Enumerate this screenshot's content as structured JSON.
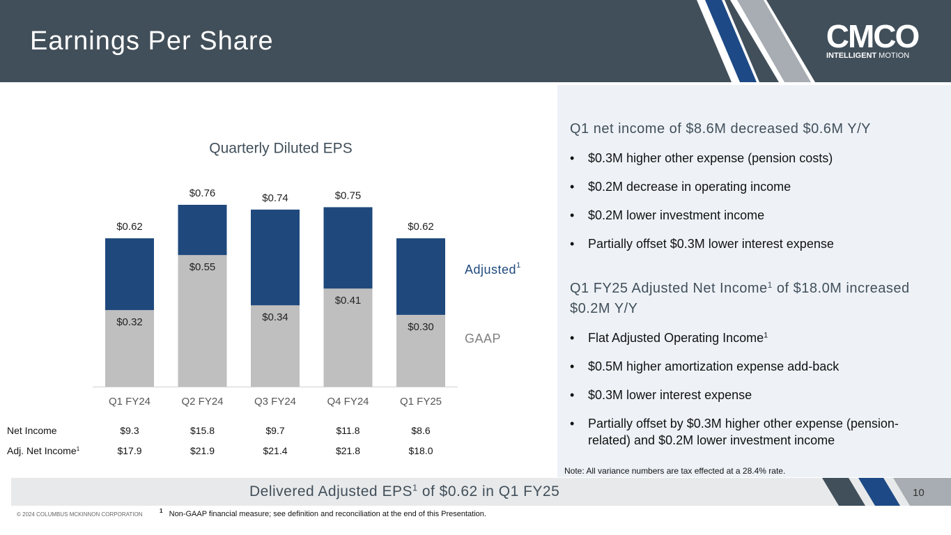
{
  "header": {
    "title": "Earnings Per Share"
  },
  "logo": {
    "mark": "CMCO",
    "tagline_bold": "INTELLIGENT",
    "tagline": "MOTION"
  },
  "footnote_mark": "1",
  "chart_data": {
    "type": "bar",
    "title": "Quarterly Diluted EPS",
    "categories": [
      "Q1 FY24",
      "Q2 FY24",
      "Q3 FY24",
      "Q4 FY24",
      "Q1 FY25"
    ],
    "series": [
      {
        "name": "Adjusted",
        "color": "#1f497d",
        "values": [
          0.62,
          0.76,
          0.74,
          0.75,
          0.62
        ],
        "value_labels": [
          "$0.62",
          "$0.76",
          "$0.74",
          "$0.75",
          "$0.62"
        ]
      },
      {
        "name": "GAAP",
        "color": "#bfbfbf",
        "values": [
          0.32,
          0.55,
          0.34,
          0.41,
          0.3
        ],
        "value_labels": [
          "$0.32",
          "$0.55",
          "$0.34",
          "$0.41",
          "$0.30"
        ]
      }
    ]
  },
  "table": {
    "rows": [
      {
        "label": "Net Income",
        "values": [
          "$9.3",
          "$15.8",
          "$9.7",
          "$11.8",
          "$8.6"
        ]
      },
      {
        "label": "Adj. Net Income",
        "values": [
          "$17.9",
          "$21.9",
          "$21.4",
          "$21.8",
          "$18.0"
        ]
      }
    ]
  },
  "panel": {
    "section1": {
      "heading": "Q1 net income of $8.6M decreased $0.6M Y/Y",
      "bullets": [
        "$0.3M higher other expense (pension costs)",
        "$0.2M decrease in operating income",
        "$0.2M lower investment income",
        "Partially offset $0.3M lower interest expense"
      ]
    },
    "section2": {
      "heading_a": "Q1 FY25 Adjusted Net Income",
      "heading_b": " of $18.0M increased $0.2M Y/Y",
      "bullet1": "Flat Adjusted Operating Income",
      "bullets": [
        "$0.5M higher amortization expense add-back",
        "$0.3M lower interest expense",
        "Partially offset by $0.3M higher other expense (pension-related) and $0.2M lower investment income"
      ]
    },
    "note": "Note: All variance numbers are tax effected at a 28.4% rate."
  },
  "banner": {
    "text_a": "Delivered Adjusted EPS",
    "text_b": " of $0.62 in Q1 FY25",
    "page": "10"
  },
  "footer": {
    "copyright": "© 2024 COLUMBUS MCKINNON CORPORATION",
    "footnote": "Non-GAAP financial measure; see definition and reconciliation at the end of this Presentation."
  }
}
